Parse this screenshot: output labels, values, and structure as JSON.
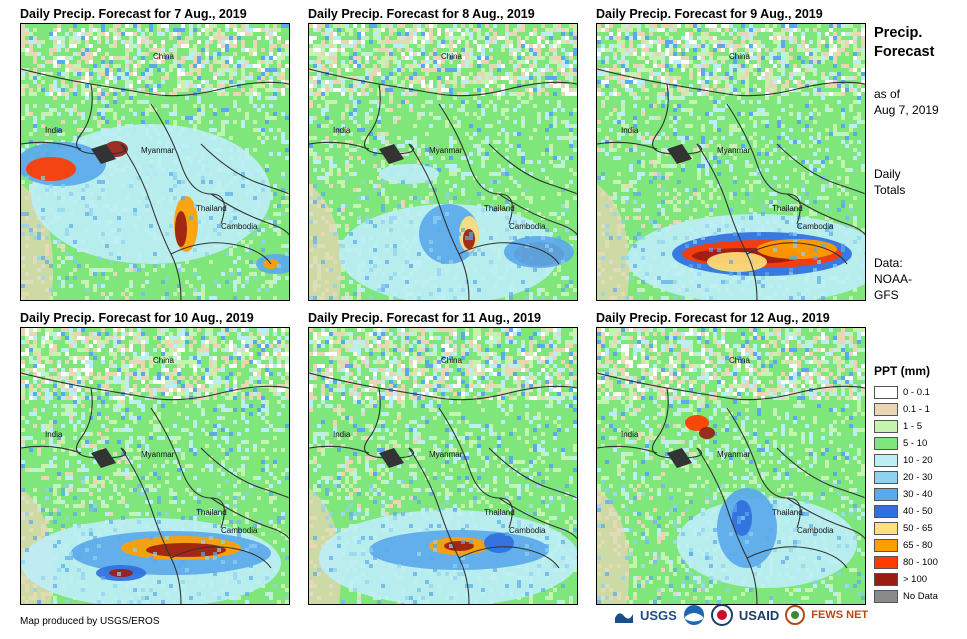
{
  "panels": [
    {
      "title": "Daily Precip. Forecast for 7 Aug., 2019",
      "places": [
        "China",
        "India",
        "Myanmar",
        "Thailand",
        "Cambodia"
      ]
    },
    {
      "title": "Daily Precip. Forecast for 8 Aug., 2019",
      "places": [
        "China",
        "India",
        "Myanmar",
        "Thailand",
        "Cambodia"
      ]
    },
    {
      "title": "Daily Precip. Forecast for 9 Aug., 2019",
      "places": [
        "China",
        "India",
        "Myanmar",
        "Thailand",
        "Cambodia"
      ]
    },
    {
      "title": "Daily Precip. Forecast for 10 Aug., 2019",
      "places": [
        "China",
        "India",
        "Myanmar",
        "Thailand",
        "Cambodia"
      ]
    },
    {
      "title": "Daily Precip. Forecast for 11 Aug., 2019",
      "places": [
        "China",
        "India",
        "Myanmar",
        "Thailand",
        "Cambodia"
      ]
    },
    {
      "title": "Daily Precip. Forecast for 12 Aug., 2019",
      "places": [
        "China",
        "India",
        "Myanmar",
        "Thailand",
        "Cambodia"
      ]
    }
  ],
  "side": {
    "title_line1": "Precip.",
    "title_line2": "Forecast",
    "asof_line1": "as of",
    "asof_line2": "Aug 7, 2019",
    "totals_line1": "Daily",
    "totals_line2": "Totals",
    "source_line1": "Data:",
    "source_line2": "NOAA-",
    "source_line3": "GFS"
  },
  "legend": {
    "title": "PPT (mm)",
    "items": [
      {
        "label": "0 - 0.1",
        "color": "#ffffff"
      },
      {
        "label": "0.1 - 1",
        "color": "#e8d6b4"
      },
      {
        "label": "1 - 5",
        "color": "#c5f4b0"
      },
      {
        "label": "5 - 10",
        "color": "#7ee67b"
      },
      {
        "label": "10 - 20",
        "color": "#bdeef6"
      },
      {
        "label": "20 - 30",
        "color": "#8fd2f0"
      },
      {
        "label": "30 - 40",
        "color": "#5aa9ea"
      },
      {
        "label": "40 - 50",
        "color": "#2f6fe0"
      },
      {
        "label": "50 - 65",
        "color": "#ffe07a"
      },
      {
        "label": "65 - 80",
        "color": "#ff9e00"
      },
      {
        "label": "80 - 100",
        "color": "#ff3b00"
      },
      {
        "label": "> 100",
        "color": "#9b1d12"
      },
      {
        "label": "No Data",
        "color": "#8a8a8a"
      }
    ]
  },
  "footer": {
    "credit": "Map produced by USGS/EROS",
    "logo_usgs": "USGS",
    "logo_usaid": "USAID",
    "logo_fewsnet": "FEWS NET"
  }
}
